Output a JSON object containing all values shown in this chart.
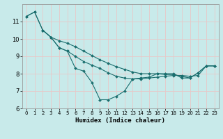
{
  "xlabel": "Humidex (Indice chaleur)",
  "background_color": "#c8eaea",
  "grid_color": "#e8c8c8",
  "line_color": "#1a6e6e",
  "xlim": [
    -0.5,
    23.5
  ],
  "ylim": [
    6,
    12
  ],
  "yticks": [
    6,
    7,
    8,
    9,
    10,
    11
  ],
  "xticks": [
    0,
    1,
    2,
    3,
    4,
    5,
    6,
    7,
    8,
    9,
    10,
    11,
    12,
    13,
    14,
    15,
    16,
    17,
    18,
    19,
    20,
    21,
    22,
    23
  ],
  "series": [
    {
      "x": [
        0,
        1,
        2,
        3,
        4,
        5,
        6,
        7,
        8,
        9,
        10,
        11,
        12,
        13,
        14,
        15,
        16,
        17,
        18,
        19,
        20,
        21,
        22,
        23
      ],
      "y": [
        11.3,
        11.55,
        10.5,
        10.1,
        9.5,
        9.3,
        8.3,
        8.15,
        7.5,
        6.5,
        6.5,
        6.7,
        7.0,
        7.7,
        7.75,
        7.8,
        8.0,
        8.0,
        8.0,
        7.75,
        7.75,
        8.05,
        8.45,
        8.45
      ]
    },
    {
      "x": [
        0,
        1,
        2,
        3,
        4,
        5,
        6,
        7,
        8,
        9,
        10,
        11,
        12,
        13,
        14,
        15,
        16,
        17,
        18,
        19,
        20,
        21,
        22,
        23
      ],
      "y": [
        11.3,
        11.55,
        10.5,
        10.1,
        9.9,
        9.75,
        9.55,
        9.3,
        9.05,
        8.8,
        8.6,
        8.4,
        8.25,
        8.1,
        8.0,
        8.0,
        8.0,
        7.95,
        7.95,
        7.85,
        7.75,
        8.05,
        8.45,
        8.45
      ]
    },
    {
      "x": [
        2,
        3,
        4,
        5,
        6,
        7,
        8,
        9,
        10,
        11,
        12,
        13,
        14,
        15,
        16,
        17,
        18,
        19,
        20,
        21,
        22,
        23
      ],
      "y": [
        10.5,
        10.1,
        9.5,
        9.3,
        9.0,
        8.7,
        8.5,
        8.3,
        8.05,
        7.85,
        7.75,
        7.7,
        7.7,
        7.75,
        7.8,
        7.85,
        7.9,
        7.9,
        7.85,
        7.9,
        8.45,
        8.45
      ]
    }
  ]
}
